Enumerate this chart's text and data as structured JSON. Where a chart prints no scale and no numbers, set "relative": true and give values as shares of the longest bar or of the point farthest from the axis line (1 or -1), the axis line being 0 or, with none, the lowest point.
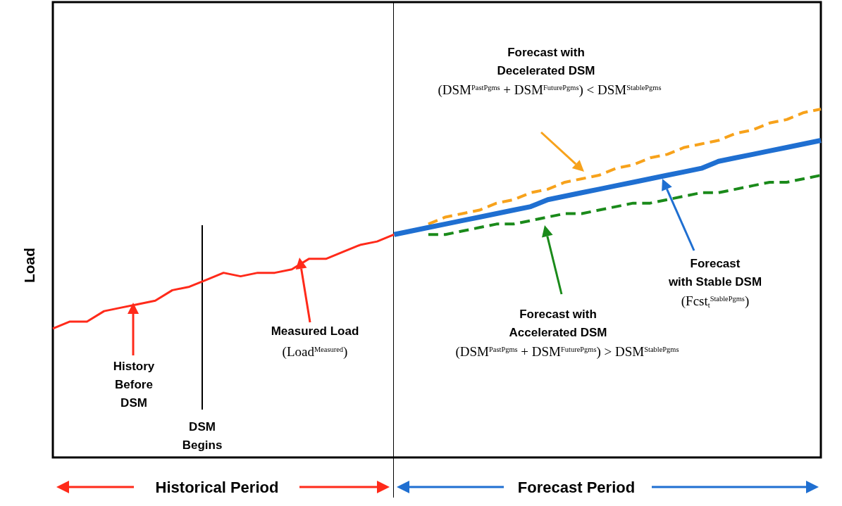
{
  "chart_data": {
    "type": "line",
    "relative": true,
    "ylabel": "Load",
    "categories": [
      null,
      null,
      null,
      null,
      null,
      null,
      null,
      null,
      null,
      null,
      null,
      null,
      null,
      null,
      null,
      null,
      null,
      null,
      null,
      null,
      null,
      null,
      null,
      null,
      null,
      null,
      null,
      null,
      null,
      null,
      null,
      null,
      null,
      null,
      null,
      null,
      null,
      null,
      null,
      null,
      null,
      null,
      null,
      null,
      null,
      null
    ],
    "series": [
      {
        "color": "#ff2a1a",
        "line_style": "solid",
        "values": [
          0.37,
          0.39,
          0.39,
          0.42,
          0.43,
          0.44,
          0.45,
          0.48,
          0.49,
          0.51,
          0.53,
          0.52,
          0.53,
          0.53,
          0.54,
          0.57,
          0.57,
          0.59,
          0.61,
          0.62,
          0.64,
          null,
          null,
          null,
          null,
          null,
          null,
          null,
          null,
          null,
          null,
          null,
          null,
          null,
          null,
          null,
          null,
          null,
          null,
          null,
          null,
          null,
          null,
          null,
          null,
          null
        ]
      },
      {
        "color": "#f7a21b",
        "line_style": "dashed",
        "values": [
          null,
          null,
          null,
          null,
          null,
          null,
          null,
          null,
          null,
          null,
          null,
          null,
          null,
          null,
          null,
          null,
          null,
          null,
          null,
          null,
          null,
          null,
          0.67,
          0.69,
          0.7,
          0.71,
          0.73,
          0.74,
          0.76,
          0.77,
          0.79,
          0.8,
          0.81,
          0.83,
          0.84,
          0.86,
          0.87,
          0.89,
          0.9,
          0.91,
          0.93,
          0.94,
          0.96,
          0.97,
          0.99,
          1.0
        ]
      },
      {
        "color": "#1a8a1a",
        "line_style": "dashed",
        "values": [
          null,
          null,
          null,
          null,
          null,
          null,
          null,
          null,
          null,
          null,
          null,
          null,
          null,
          null,
          null,
          null,
          null,
          null,
          null,
          null,
          null,
          null,
          0.64,
          0.64,
          0.65,
          0.66,
          0.67,
          0.67,
          0.68,
          0.69,
          0.7,
          0.7,
          0.71,
          0.72,
          0.73,
          0.73,
          0.74,
          0.75,
          0.76,
          0.76,
          0.77,
          0.78,
          0.79,
          0.79,
          0.8,
          0.81
        ]
      },
      {
        "color": "#1f6fd1",
        "line_style": "solid",
        "values": [
          null,
          null,
          null,
          null,
          null,
          null,
          null,
          null,
          null,
          null,
          null,
          null,
          null,
          null,
          null,
          null,
          null,
          null,
          null,
          null,
          0.64,
          0.65,
          0.66,
          0.67,
          0.68,
          0.69,
          0.7,
          0.71,
          0.72,
          0.74,
          0.75,
          0.76,
          0.77,
          0.78,
          0.79,
          0.8,
          0.81,
          0.82,
          0.83,
          0.85,
          0.86,
          0.87,
          0.88,
          0.89,
          0.9,
          0.91
        ]
      }
    ],
    "annotations": [
      "Forecast with\nDecelerated DSM",
      "(DSM$^{PastPgms}$ + DSM$^{FuturePgms}$) < DSM$^{StablePgms}$",
      "Forecast\nwith Stable DSM",
      "(Fcst$_{t}$$^{StablePgms}$)",
      "Forecast with\nAccelerated DSM",
      "(DSM$^{PastPgms}$ + DSM$^{FuturePgms}$) > DSM$^{StablePgms}$",
      "Measured Load",
      "(Load$^{Measured}$)",
      "History\nBefore\nDSM",
      "DSM\nBegins",
      "Historical Period",
      "Forecast Period"
    ]
  }
}
